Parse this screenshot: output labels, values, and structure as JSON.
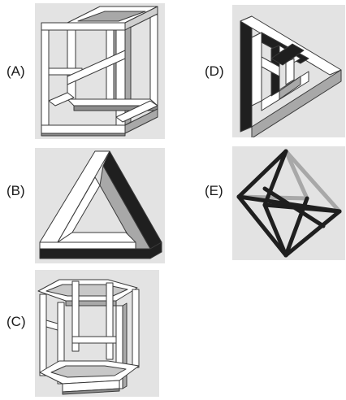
{
  "figures": [
    {
      "id": "A",
      "label": "(A)",
      "depiction": "impossible-cube-icon"
    },
    {
      "id": "B",
      "label": "(B)",
      "depiction": "penrose-triangle-icon"
    },
    {
      "id": "C",
      "label": "(C)",
      "depiction": "impossible-hexagonal-prism-icon"
    },
    {
      "id": "D",
      "label": "(D)",
      "depiction": "interlocked-impossible-triangle-icon"
    },
    {
      "id": "E",
      "label": "(E)",
      "depiction": "impossible-octahedron-icon"
    }
  ],
  "colors": {
    "panel_background": "#e3e3e3",
    "face_light": "#ffffff",
    "face_mid": "#a8a8a8",
    "face_dark": "#1f1f1f",
    "outline": "#3a3a3a"
  }
}
